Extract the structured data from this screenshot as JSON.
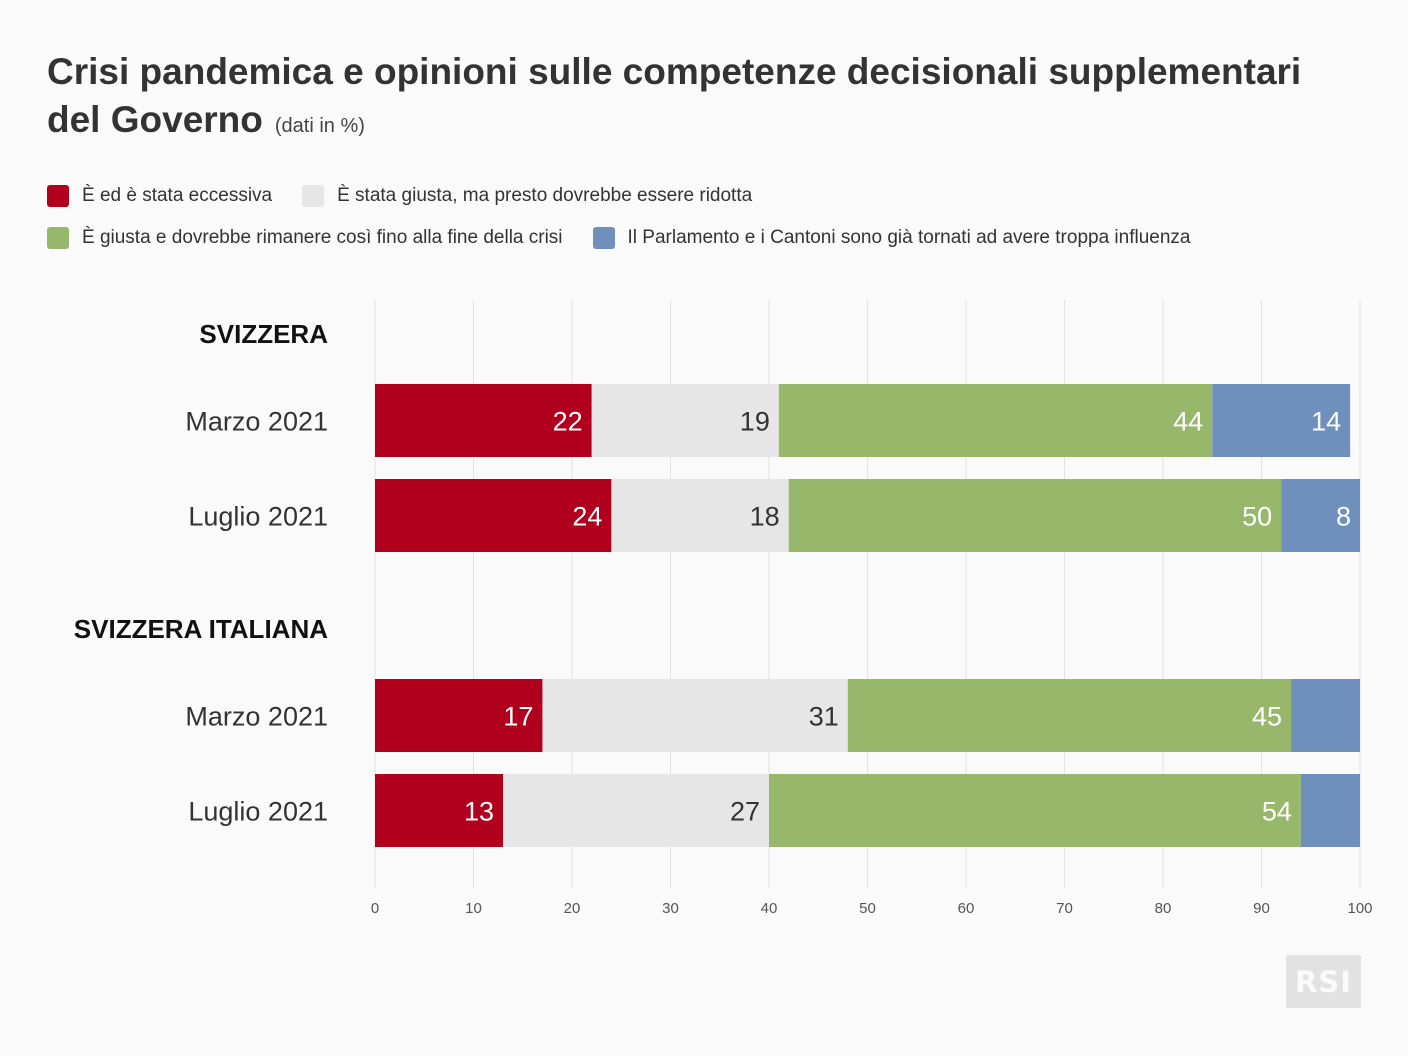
{
  "title": "Crisi pandemica e opinioni sulle competenze decisionali supplementari del Governo",
  "subtitle": "(dati in %)",
  "legend": [
    {
      "label": "È ed è stata eccessiva",
      "color": "#b0001e"
    },
    {
      "label": "È stata giusta, ma presto dovrebbe essere ridotta",
      "color": "#e6e6e6"
    },
    {
      "label": "È giusta e dovrebbe rimanere così fino alla fine della crisi",
      "color": "#97b76b"
    },
    {
      "label": "Il Parlamento e i Cantoni sono già tornati ad avere troppa influenza",
      "color": "#6f8fbd"
    }
  ],
  "logo": "RSI",
  "chart_data": {
    "type": "bar",
    "orientation": "horizontal",
    "stacked": true,
    "xlim": [
      0,
      100
    ],
    "xticks": [
      0,
      10,
      20,
      30,
      40,
      50,
      60,
      70,
      80,
      90,
      100
    ],
    "grid": true,
    "groups": [
      {
        "name": "SVIZZERA",
        "rows": [
          {
            "label": "Marzo 2021",
            "values": [
              22,
              19,
              44,
              14
            ],
            "labels": [
              "22",
              "19",
              "44",
              "14"
            ]
          },
          {
            "label": "Luglio 2021",
            "values": [
              24,
              18,
              50,
              8
            ],
            "labels": [
              "24",
              "18",
              "50",
              "8"
            ]
          }
        ]
      },
      {
        "name": "SVIZZERA ITALIANA",
        "rows": [
          {
            "label": "Marzo 2021",
            "values": [
              17,
              31,
              45,
              7
            ],
            "labels": [
              "17",
              "31",
              "45",
              ""
            ]
          },
          {
            "label": "Luglio 2021",
            "values": [
              13,
              27,
              54,
              6
            ],
            "labels": [
              "13",
              "27",
              "54",
              ""
            ]
          }
        ]
      }
    ],
    "series_colors": [
      "#b0001e",
      "#e6e6e6",
      "#97b76b",
      "#6f8fbd"
    ],
    "label_colors": [
      "#ffffff",
      "#333333",
      "#ffffff",
      "#ffffff"
    ]
  }
}
